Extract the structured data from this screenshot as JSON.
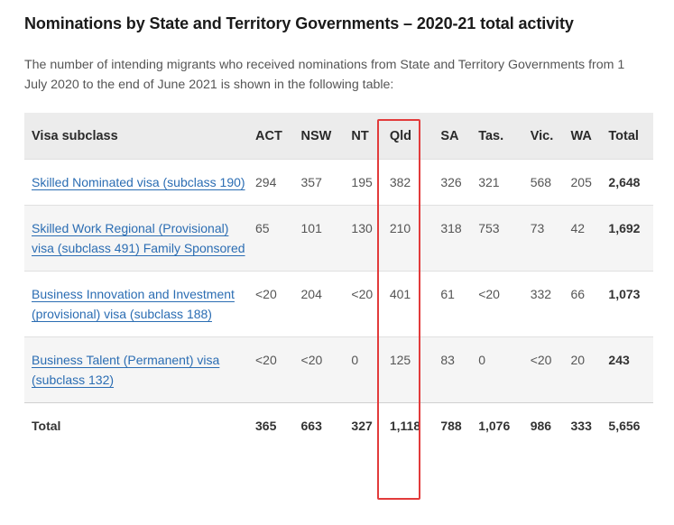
{
  "title": "Nominations by State and Territory Governments – 2020-21 total activity",
  "intro": "The number of intending migrants who received nominations from State and Territory Governments from 1 July 2020 to the end of June 2021 is shown in the following table:",
  "table": {
    "headers": [
      "Visa subclass",
      "ACT",
      "NSW",
      "NT",
      "Qld",
      "SA",
      "Tas.",
      "Vic.",
      "WA",
      "Total"
    ],
    "rows": [
      {
        "label": "Skilled Nominated visa (subclass 190)",
        "values": [
          "294",
          "357",
          "195",
          "382",
          "326",
          "321",
          "568",
          "205"
        ],
        "total": "2,648"
      },
      {
        "label": "Skilled Work Regional (Provisional) visa (subclass 491) Family Sponsored",
        "values": [
          "65",
          "101",
          "130",
          "210",
          "318",
          "753",
          "73",
          "42"
        ],
        "total": "1,692"
      },
      {
        "label": "Business Innovation and Investment (provisional) visa (subclass 188)",
        "values": [
          "<20",
          "204",
          "<20",
          "401",
          "61",
          "<20",
          "332",
          "66"
        ],
        "total": "1,073"
      },
      {
        "label": "Business Talent (Permanent) visa (subclass 132)",
        "values": [
          "<20",
          "<20",
          "0",
          "125",
          "83",
          "0",
          "<20",
          "20"
        ],
        "total": "243"
      }
    ],
    "total_row": {
      "label": "Total",
      "values": [
        "365",
        "663",
        "327",
        "1,118",
        "788",
        "1,076",
        "986",
        "333"
      ],
      "total": "5,656"
    }
  },
  "highlight_color": "#e23b3b"
}
